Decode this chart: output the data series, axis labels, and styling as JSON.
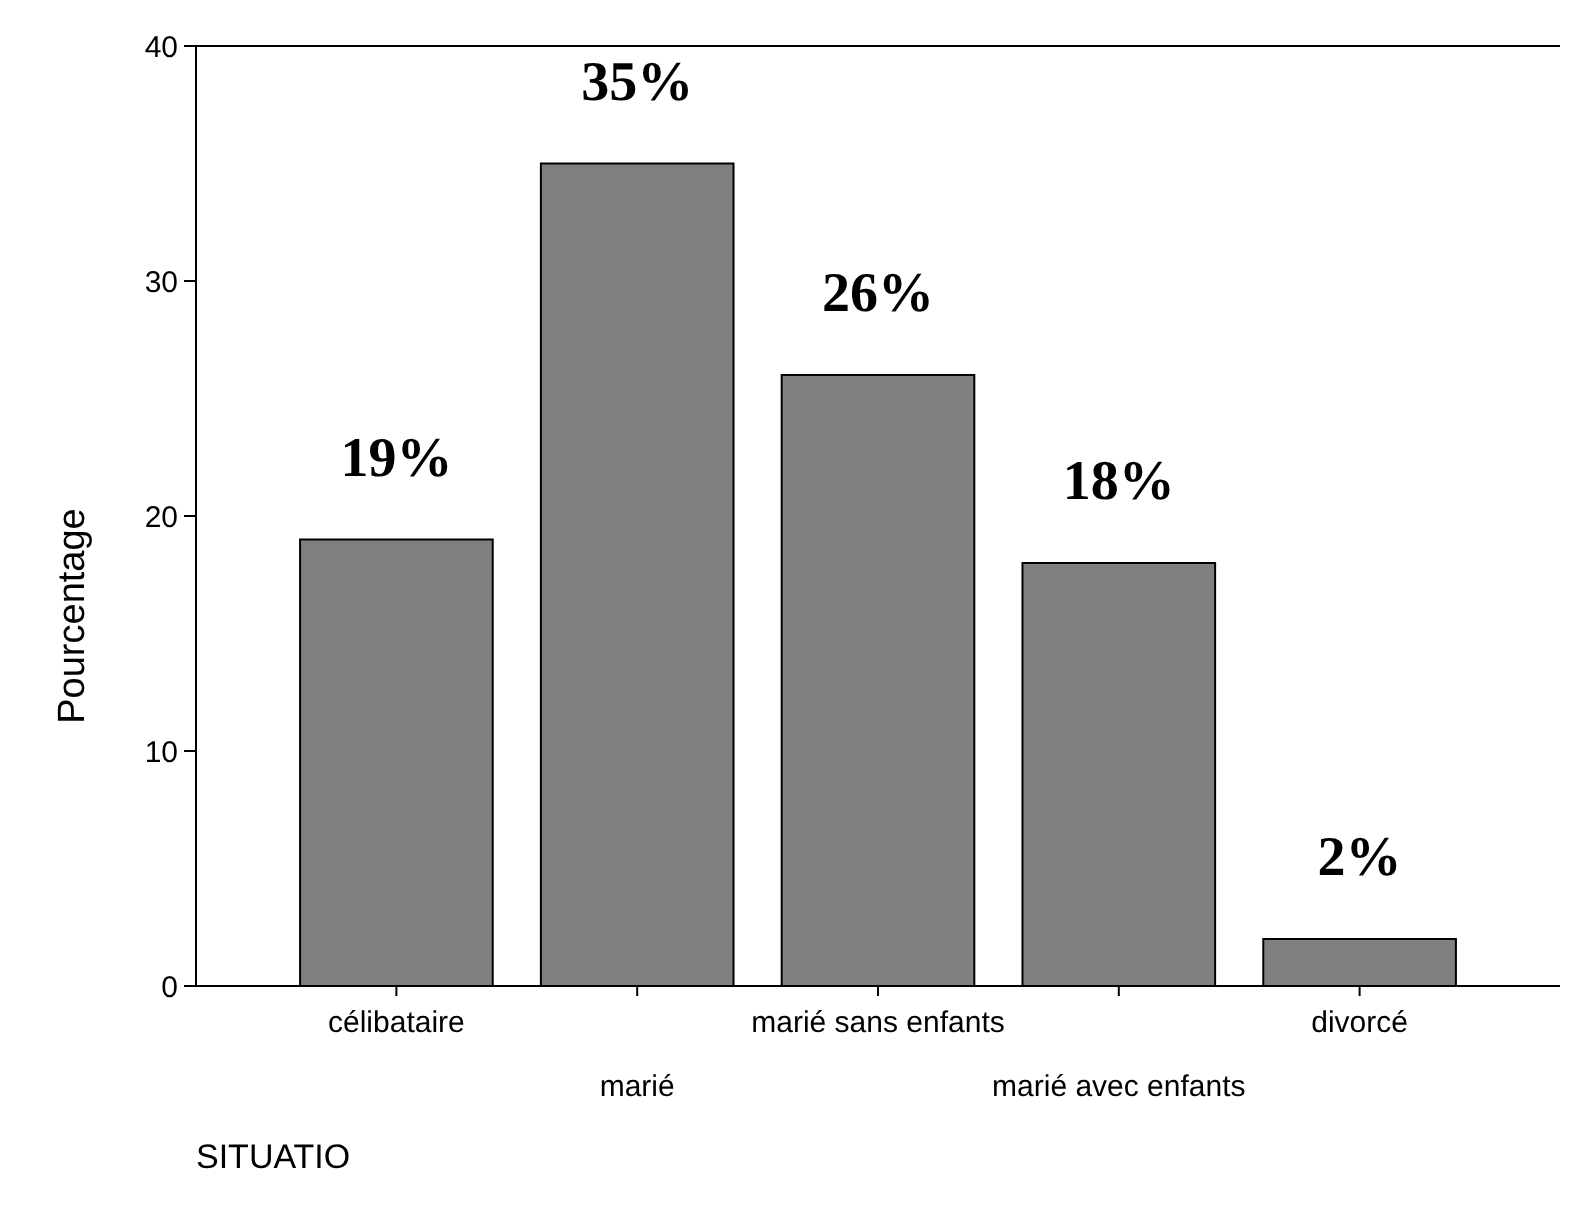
{
  "chart_data": {
    "type": "bar",
    "xlabel": "SITUATIO",
    "ylabel": "Pourcentage",
    "categories": [
      "célibataire",
      "marié",
      "marié sans enfants",
      "marié avec enfants",
      "divorcé"
    ],
    "values": [
      19,
      35,
      26,
      18,
      2
    ],
    "value_labels": [
      "19%",
      "35%",
      "26%",
      "18%",
      "2%"
    ],
    "color": "#808080",
    "ylim": [
      0,
      40
    ],
    "yticks": [
      0,
      10,
      20,
      30,
      40
    ],
    "grid": false
  }
}
